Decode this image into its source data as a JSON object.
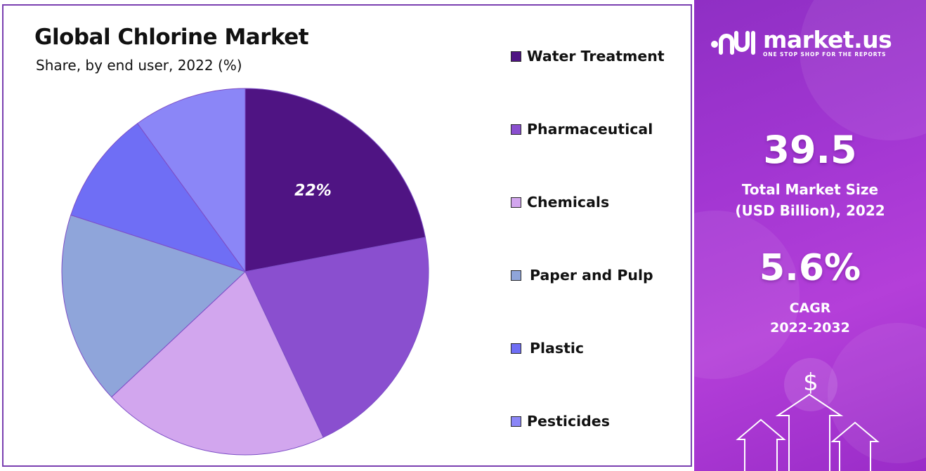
{
  "chart_data": {
    "type": "pie",
    "title": "Global Chlorine Market",
    "subtitle": "Share, by end user, 2022 (%)",
    "legend_position": "right",
    "slices": [
      {
        "label": "Water Treatment",
        "value": 22,
        "color": "#4f1483",
        "data_label": "22%"
      },
      {
        "label": "Pharmaceutical",
        "value": 21,
        "color": "#8a4fcf",
        "data_label": ""
      },
      {
        "label": "Chemicals",
        "value": 20,
        "color": "#d2a6ee",
        "data_label": ""
      },
      {
        "label": "Paper and Pulp",
        "value": 17,
        "color": "#8fa5da",
        "data_label": ""
      },
      {
        "label": "Plastic",
        "value": 10,
        "color": "#6f6ef5",
        "data_label": ""
      },
      {
        "label": "Pesticides",
        "value": 10,
        "color": "#8b86f7",
        "data_label": ""
      }
    ]
  },
  "brand": {
    "name": "market.us",
    "tagline": "ONE STOP SHOP FOR THE REPORTS"
  },
  "stats": {
    "market_size_value": "39.5",
    "market_size_label_line1": "Total Market Size",
    "market_size_label_line2": "(USD Billion), 2022",
    "cagr_value": "5.6%",
    "cagr_label_line1": "CAGR",
    "cagr_label_line2": "2022-2032"
  },
  "decor": {
    "dollar_symbol": "$"
  }
}
